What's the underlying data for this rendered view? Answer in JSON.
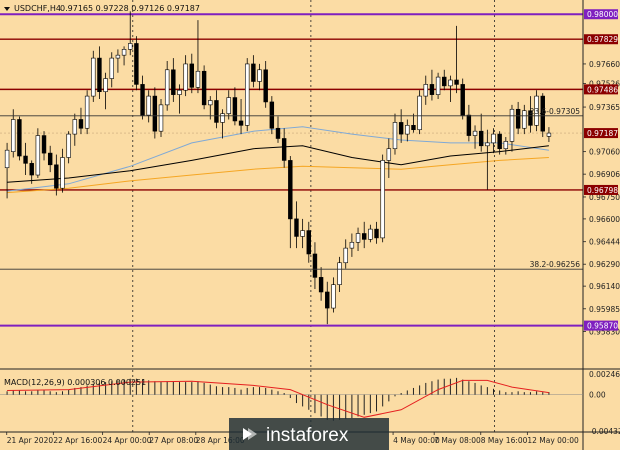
{
  "header": {
    "symbol": "USDCHF,H4",
    "ohlc": "0.97165 0.97228 0.97126 0.97187"
  },
  "watermark": {
    "text": "instaforex",
    "icon": "instaforex-logo-icon"
  },
  "colors": {
    "background": "#fbdca4",
    "bull": "#ffffff",
    "bear": "#000000",
    "resistance": "#8b0000",
    "extreme": "#7f1fbf",
    "ma_black": "#000000",
    "ma_blue": "#7fa9d6",
    "ma_orange": "#f5a623",
    "macd_signal": "#e52020",
    "price_tag": "#8b0000"
  },
  "chart_data": [
    {
      "type": "candlestick",
      "symbol": "USDCHF",
      "timeframe": "H4",
      "ylim": [
        0.9558,
        0.9807
      ],
      "yticks": [
        "0.98000",
        "0.97829",
        "0.97660",
        "0.97526",
        "0.97486",
        "0.97365",
        "0.97187",
        "0.97060",
        "0.96906",
        "0.96798",
        "0.96750",
        "0.96600",
        "0.96444",
        "0.96290",
        "0.96140",
        "0.95985",
        "0.95870",
        "0.95830"
      ],
      "xticks": [
        "21 Apr 2020",
        "22 Apr 16:00",
        "24 Apr 00:00",
        "27 Apr 08:00",
        "28 Apr 16:00",
        "4 May 00:00",
        "7 May 08:00",
        "8 May 16:00",
        "12 May 00:00"
      ],
      "horizontal_levels": [
        {
          "value": 0.97829,
          "label": "0.97829",
          "color": "#8b0000",
          "tagged": true
        },
        {
          "value": 0.97486,
          "label": "0.97486",
          "color": "#8b0000",
          "tagged": true
        },
        {
          "value": 0.96798,
          "label": "0.96798",
          "color": "#8b0000",
          "tagged": true
        },
        {
          "value": 0.98,
          "label": "0.98000",
          "color": "#7f1fbf",
          "tagged": true
        },
        {
          "value": 0.9587,
          "label": "0.95870",
          "color": "#7f1fbf",
          "tagged": true
        },
        {
          "value": 0.97187,
          "label": "0.97187",
          "color": "#8b0000",
          "tagged": true,
          "role": "current-price"
        }
      ],
      "fibonacci": [
        {
          "label": "23.6-0.97305",
          "value": 0.97305
        },
        {
          "label": "38.2-0.96256",
          "value": 0.96256
        }
      ],
      "candles": [
        [
          0.9695,
          0.9712,
          0.9674,
          0.9707
        ],
        [
          0.9706,
          0.9735,
          0.9702,
          0.9728
        ],
        [
          0.9728,
          0.973,
          0.97,
          0.9703
        ],
        [
          0.9703,
          0.9712,
          0.969,
          0.9698
        ],
        [
          0.9698,
          0.97,
          0.9684,
          0.969
        ],
        [
          0.969,
          0.9722,
          0.9688,
          0.9717
        ],
        [
          0.9717,
          0.972,
          0.97,
          0.9705
        ],
        [
          0.9705,
          0.971,
          0.9692,
          0.9697
        ],
        [
          0.9697,
          0.9704,
          0.9676,
          0.9681
        ],
        [
          0.9681,
          0.9708,
          0.9678,
          0.9702
        ],
        [
          0.9702,
          0.972,
          0.9698,
          0.9718
        ],
        [
          0.9718,
          0.9732,
          0.971,
          0.9728
        ],
        [
          0.9728,
          0.9736,
          0.9718,
          0.9722
        ],
        [
          0.9722,
          0.9748,
          0.9718,
          0.9744
        ],
        [
          0.9744,
          0.9775,
          0.974,
          0.977
        ],
        [
          0.977,
          0.9778,
          0.9742,
          0.9747
        ],
        [
          0.9747,
          0.976,
          0.9735,
          0.9756
        ],
        [
          0.9756,
          0.9774,
          0.975,
          0.977
        ],
        [
          0.977,
          0.9776,
          0.976,
          0.9772
        ],
        [
          0.9772,
          0.9778,
          0.9765,
          0.9776
        ],
        [
          0.9776,
          0.9802,
          0.9772,
          0.978
        ],
        [
          0.978,
          0.9785,
          0.9748,
          0.9752
        ],
        [
          0.9752,
          0.9758,
          0.9728,
          0.9731
        ],
        [
          0.9731,
          0.9748,
          0.9726,
          0.9744
        ],
        [
          0.9744,
          0.975,
          0.9715,
          0.972
        ],
        [
          0.972,
          0.9742,
          0.9716,
          0.9738
        ],
        [
          0.9738,
          0.9768,
          0.9734,
          0.9762
        ],
        [
          0.9762,
          0.977,
          0.974,
          0.9745
        ],
        [
          0.9745,
          0.9752,
          0.9732,
          0.9748
        ],
        [
          0.9748,
          0.9772,
          0.9744,
          0.9766
        ],
        [
          0.9766,
          0.9773,
          0.9746,
          0.975
        ],
        [
          0.975,
          0.9796,
          0.9746,
          0.9761
        ],
        [
          0.9761,
          0.9765,
          0.9735,
          0.9738
        ],
        [
          0.9738,
          0.9744,
          0.9728,
          0.9741
        ],
        [
          0.9741,
          0.9748,
          0.9722,
          0.9726
        ],
        [
          0.9726,
          0.9735,
          0.9715,
          0.9732
        ],
        [
          0.9732,
          0.9748,
          0.9728,
          0.9743
        ],
        [
          0.9743,
          0.975,
          0.9724,
          0.9727
        ],
        [
          0.9727,
          0.9742,
          0.9718,
          0.9724
        ],
        [
          0.9724,
          0.977,
          0.972,
          0.9766
        ],
        [
          0.9766,
          0.9772,
          0.975,
          0.9754
        ],
        [
          0.9754,
          0.9766,
          0.9748,
          0.9762
        ],
        [
          0.9762,
          0.9768,
          0.9736,
          0.974
        ],
        [
          0.974,
          0.9744,
          0.9718,
          0.9722
        ],
        [
          0.9722,
          0.973,
          0.9712,
          0.9715
        ],
        [
          0.9715,
          0.9722,
          0.9695,
          0.97
        ],
        [
          0.97,
          0.9703,
          0.964,
          0.966
        ],
        [
          0.966,
          0.9672,
          0.964,
          0.9648
        ],
        [
          0.9648,
          0.966,
          0.964,
          0.9652
        ],
        [
          0.9652,
          0.9658,
          0.963,
          0.9636
        ],
        [
          0.9636,
          0.9644,
          0.9612,
          0.962
        ],
        [
          0.962,
          0.9627,
          0.9604,
          0.961
        ],
        [
          0.961,
          0.9617,
          0.9588,
          0.9599
        ],
        [
          0.9599,
          0.962,
          0.9596,
          0.9615
        ],
        [
          0.9615,
          0.9634,
          0.961,
          0.963
        ],
        [
          0.963,
          0.9646,
          0.9626,
          0.964
        ],
        [
          0.964,
          0.965,
          0.9634,
          0.9644
        ],
        [
          0.9644,
          0.9654,
          0.9638,
          0.965
        ],
        [
          0.965,
          0.9658,
          0.964,
          0.9646
        ],
        [
          0.9646,
          0.9656,
          0.9644,
          0.9653
        ],
        [
          0.9653,
          0.9658,
          0.9643,
          0.9647
        ],
        [
          0.9647,
          0.9704,
          0.9644,
          0.97
        ],
        [
          0.97,
          0.9715,
          0.9688,
          0.9708
        ],
        [
          0.9708,
          0.9732,
          0.9704,
          0.9726
        ],
        [
          0.9726,
          0.9735,
          0.9712,
          0.9718
        ],
        [
          0.9718,
          0.9728,
          0.9713,
          0.9724
        ],
        [
          0.9724,
          0.9732,
          0.9719,
          0.9721
        ],
        [
          0.9721,
          0.9748,
          0.9718,
          0.9744
        ],
        [
          0.9744,
          0.9758,
          0.9738,
          0.9752
        ],
        [
          0.9752,
          0.9762,
          0.9741,
          0.9745
        ],
        [
          0.9745,
          0.976,
          0.9742,
          0.9757
        ],
        [
          0.9757,
          0.9762,
          0.9748,
          0.9751
        ],
        [
          0.9751,
          0.9758,
          0.974,
          0.9755
        ],
        [
          0.9755,
          0.9792,
          0.9746,
          0.9752
        ],
        [
          0.9752,
          0.9756,
          0.9728,
          0.9731
        ],
        [
          0.9731,
          0.9738,
          0.9713,
          0.9717
        ],
        [
          0.9717,
          0.9724,
          0.9708,
          0.972
        ],
        [
          0.972,
          0.9732,
          0.9706,
          0.971
        ],
        [
          0.971,
          0.9721,
          0.968,
          0.9712
        ],
        [
          0.9712,
          0.9722,
          0.9705,
          0.9718
        ],
        [
          0.9718,
          0.972,
          0.9704,
          0.9708
        ],
        [
          0.9708,
          0.9716,
          0.9704,
          0.9713
        ],
        [
          0.9713,
          0.9738,
          0.9706,
          0.9735
        ],
        [
          0.9735,
          0.974,
          0.9718,
          0.9722
        ],
        [
          0.9722,
          0.9738,
          0.9718,
          0.9734
        ],
        [
          0.9734,
          0.9744,
          0.9719,
          0.9724
        ],
        [
          0.9724,
          0.9748,
          0.972,
          0.9744
        ],
        [
          0.9744,
          0.9746,
          0.9716,
          0.972
        ],
        [
          0.97165,
          0.97228,
          0.97126,
          0.97187
        ]
      ],
      "moving_averages": [
        {
          "color": "#7fa9d6",
          "points": [
            [
              0,
              0.9679
            ],
            [
              10,
              0.9684
            ],
            [
              20,
              0.9696
            ],
            [
              30,
              0.9712
            ],
            [
              40,
              0.972
            ],
            [
              48,
              0.9723
            ],
            [
              56,
              0.9718
            ],
            [
              64,
              0.9714
            ],
            [
              72,
              0.9712
            ],
            [
              80,
              0.9712
            ],
            [
              88,
              0.9707
            ]
          ]
        },
        {
          "color": "#000000",
          "points": [
            [
              0,
              0.9685
            ],
            [
              10,
              0.9688
            ],
            [
              20,
              0.9693
            ],
            [
              30,
              0.97
            ],
            [
              40,
              0.9708
            ],
            [
              48,
              0.971
            ],
            [
              56,
              0.9702
            ],
            [
              64,
              0.9697
            ],
            [
              72,
              0.9703
            ],
            [
              80,
              0.9706
            ],
            [
              88,
              0.971
            ]
          ]
        },
        {
          "color": "#f5a623",
          "points": [
            [
              0,
              0.9678
            ],
            [
              10,
              0.9681
            ],
            [
              20,
              0.9686
            ],
            [
              30,
              0.969
            ],
            [
              40,
              0.9694
            ],
            [
              48,
              0.9696
            ],
            [
              56,
              0.9695
            ],
            [
              64,
              0.9694
            ],
            [
              72,
              0.9697
            ],
            [
              80,
              0.97
            ],
            [
              88,
              0.9702
            ]
          ]
        }
      ]
    },
    {
      "type": "bar",
      "name": "MACD(12,26,9)",
      "header": "MACD(12,26,9) 0.000306 0.000251",
      "ylim": [
        -0.004329,
        0.002462
      ],
      "yticks": [
        "0.002462",
        "0.00",
        "-0.004329"
      ],
      "histogram": [
        0.0004,
        0.0005,
        0.0005,
        0.0004,
        0.0004,
        0.0005,
        0.0005,
        0.0004,
        0.0003,
        0.0004,
        0.0006,
        0.0008,
        0.0009,
        0.0011,
        0.0013,
        0.0014,
        0.0015,
        0.0016,
        0.0017,
        0.0018,
        0.0019,
        0.0019,
        0.0018,
        0.0017,
        0.0016,
        0.0015,
        0.0016,
        0.0016,
        0.0015,
        0.0015,
        0.0015,
        0.0016,
        0.0014,
        0.0012,
        0.001,
        0.0009,
        0.0009,
        0.0008,
        0.0006,
        0.0008,
        0.0009,
        0.0009,
        0.0008,
        0.0006,
        0.0004,
        0.0002,
        -0.0004,
        -0.001,
        -0.0014,
        -0.0018,
        -0.0022,
        -0.0026,
        -0.003,
        -0.0031,
        -0.003,
        -0.0029,
        -0.0028,
        -0.0026,
        -0.0024,
        -0.0022,
        -0.002,
        -0.0014,
        -0.0008,
        -0.0002,
        0.0002,
        0.0005,
        0.0008,
        0.0011,
        0.0014,
        0.0016,
        0.0018,
        0.0019,
        0.0019,
        0.002,
        0.0018,
        0.0016,
        0.0014,
        0.0011,
        0.0009,
        0.0007,
        0.0005,
        0.0003,
        0.0003,
        0.0004,
        0.0003,
        0.0003,
        0.0004,
        0.0003,
        0.0003
      ],
      "signal": [
        [
          0,
          0.0005
        ],
        [
          10,
          0.0006
        ],
        [
          20,
          0.0015
        ],
        [
          30,
          0.0016
        ],
        [
          40,
          0.0011
        ],
        [
          46,
          0.0006
        ],
        [
          52,
          -0.0012
        ],
        [
          58,
          -0.0027
        ],
        [
          64,
          -0.0018
        ],
        [
          70,
          0.0006
        ],
        [
          74,
          0.0017
        ],
        [
          78,
          0.0017
        ],
        [
          82,
          0.0009
        ],
        [
          88,
          0.000251
        ]
      ]
    }
  ]
}
